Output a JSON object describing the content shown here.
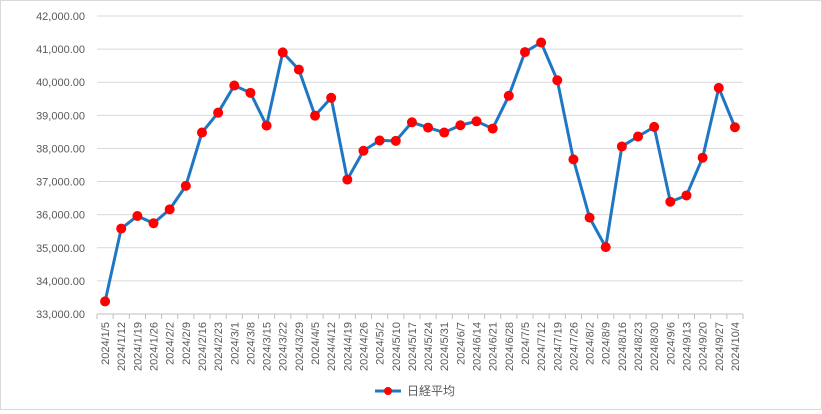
{
  "chart_data": {
    "type": "line",
    "title": "",
    "xlabel": "",
    "ylabel": "",
    "ylim": [
      33000,
      42000
    ],
    "yticks": [
      33000,
      34000,
      35000,
      36000,
      37000,
      38000,
      39000,
      40000,
      41000,
      42000
    ],
    "ytick_labels": [
      "33,000.00",
      "34,000.00",
      "35,000.00",
      "36,000.00",
      "37,000.00",
      "38,000.00",
      "39,000.00",
      "40,000.00",
      "41,000.00",
      "42,000.00"
    ],
    "grid": true,
    "legend_position": "bottom",
    "line_color": "#1f77c4",
    "marker_color": "#ff0000",
    "categories": [
      "2024/1/5",
      "2024/1/12",
      "2024/1/19",
      "2024/1/26",
      "2024/2/2",
      "2024/2/9",
      "2024/2/16",
      "2024/2/23",
      "2024/3/1",
      "2024/3/8",
      "2024/3/15",
      "2024/3/22",
      "2024/3/29",
      "2024/4/5",
      "2024/4/12",
      "2024/4/19",
      "2024/4/26",
      "2024/5/2",
      "2024/5/10",
      "2024/5/17",
      "2024/5/24",
      "2024/5/31",
      "2024/6/7",
      "2024/6/14",
      "2024/6/21",
      "2024/6/28",
      "2024/7/5",
      "2024/7/12",
      "2024/7/19",
      "2024/7/26",
      "2024/8/2",
      "2024/8/9",
      "2024/8/16",
      "2024/8/23",
      "2024/8/30",
      "2024/9/6",
      "2024/9/13",
      "2024/9/20",
      "2024/9/27",
      "2024/10/4"
    ],
    "series": [
      {
        "name": "日経平均",
        "values": [
          33380,
          35580,
          35960,
          35740,
          36160,
          36870,
          38480,
          39080,
          39900,
          39680,
          38690,
          40900,
          40380,
          38990,
          39530,
          37060,
          37930,
          38240,
          38230,
          38790,
          38630,
          38480,
          38700,
          38820,
          38600,
          39590,
          40910,
          41200,
          40060,
          37670,
          35910,
          35020,
          38060,
          38360,
          38650,
          36390,
          36580,
          37720,
          39830,
          38640
        ]
      }
    ]
  }
}
